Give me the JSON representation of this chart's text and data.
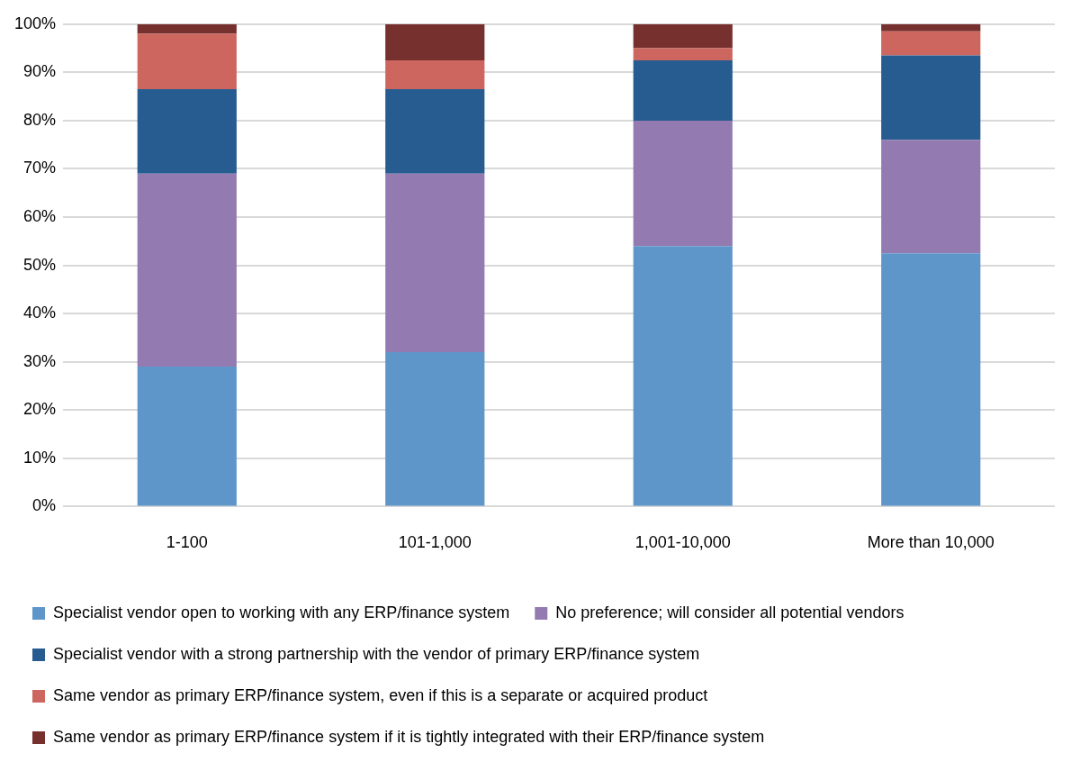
{
  "chart_data": {
    "type": "bar",
    "stacked": true,
    "categories": [
      "1-100",
      "101-1,000",
      "1,001-10,000",
      "More than 10,000"
    ],
    "series": [
      {
        "name": "Specialist vendor open to working with any ERP/finance system",
        "color": "#5f96c9",
        "values": [
          29,
          32,
          54,
          52.5
        ]
      },
      {
        "name": "No preference; will consider all potential vendors",
        "color": "#937bb1",
        "values": [
          40,
          37,
          26,
          23.5
        ]
      },
      {
        "name": "Specialist vendor with a strong partnership with the vendor of primary ERP/finance system",
        "color": "#265c8f",
        "values": [
          17.5,
          17.5,
          12.5,
          17.5
        ]
      },
      {
        "name": "Same vendor as primary ERP/finance system, even if this is a separate or acquired product",
        "color": "#cd665f",
        "values": [
          11.5,
          6,
          2.5,
          5
        ]
      },
      {
        "name": "Same vendor as primary ERP/finance system if it is tightly integrated with their ERP/finance system",
        "color": "#76302e",
        "values": [
          2,
          7.5,
          5,
          1.5
        ]
      }
    ],
    "ylim": [
      0,
      100
    ],
    "yticks": [
      {
        "value": 0,
        "label": "0%"
      },
      {
        "value": 10,
        "label": "10%"
      },
      {
        "value": 20,
        "label": "20%"
      },
      {
        "value": 30,
        "label": "30%"
      },
      {
        "value": 40,
        "label": "40%"
      },
      {
        "value": 50,
        "label": "50%"
      },
      {
        "value": 60,
        "label": "60%"
      },
      {
        "value": 70,
        "label": "70%"
      },
      {
        "value": 80,
        "label": "80%"
      },
      {
        "value": 90,
        "label": "90%"
      },
      {
        "value": 100,
        "label": "100%"
      }
    ],
    "grid": "y",
    "legend": "bottom"
  }
}
